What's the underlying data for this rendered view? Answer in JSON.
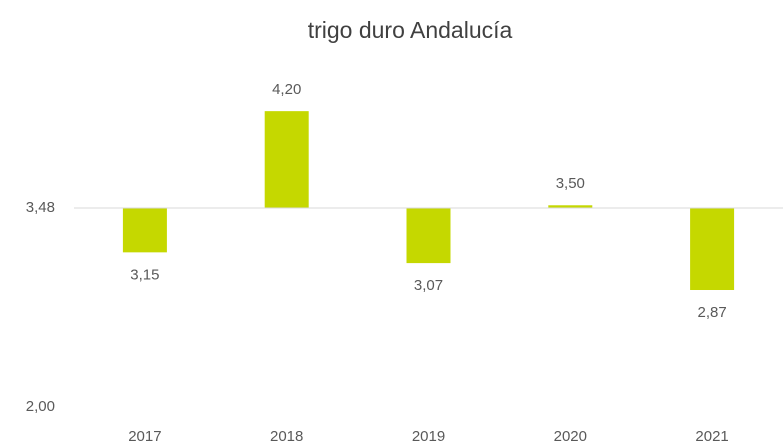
{
  "chart_data": {
    "type": "bar",
    "title": "trigo duro Andalucía",
    "categories": [
      "2017",
      "2018",
      "2019",
      "2020",
      "2021"
    ],
    "values": [
      3.15,
      4.2,
      3.07,
      3.5,
      2.87
    ],
    "value_labels": [
      "3,15",
      "4,20",
      "3,07",
      "3,50",
      "2,87"
    ],
    "color": "#c5d800",
    "ylim": [
      2.0,
      4.5
    ],
    "yticks": [
      {
        "value": 3.48,
        "label": "3,48"
      },
      {
        "value": 2.0,
        "label": "2,00"
      }
    ],
    "x_axis_crosses": 3.48
  }
}
